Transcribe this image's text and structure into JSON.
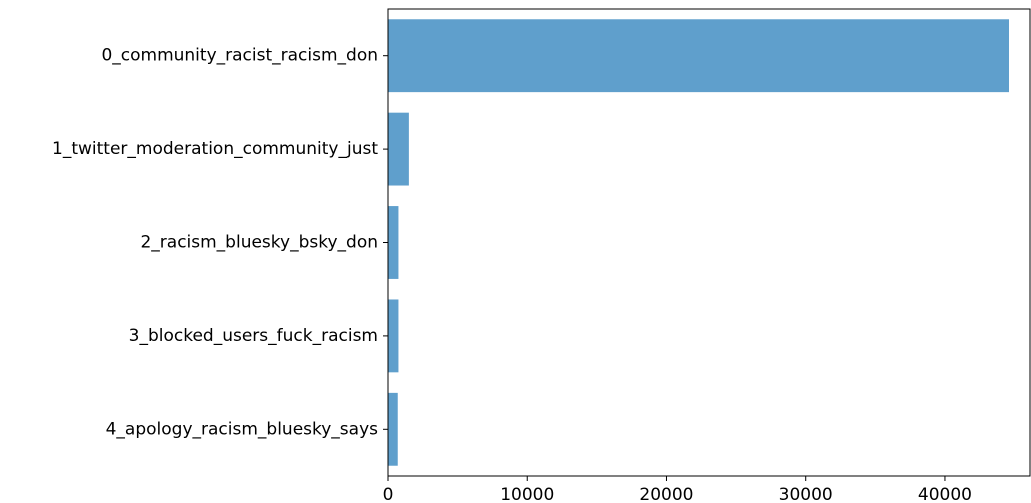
{
  "chart_data": {
    "type": "bar",
    "orientation": "horizontal",
    "categories": [
      "0_community_racist_racism_don",
      "1_twitter_moderation_community_just",
      "2_racism_bluesky_bsky_don",
      "3_blocked_users_fuck_racism",
      "4_apology_racism_bluesky_says"
    ],
    "values": [
      44600,
      1500,
      750,
      750,
      700
    ],
    "title": "",
    "xlabel": "",
    "ylabel": "",
    "xlim": [
      0,
      44600
    ],
    "xticks": [
      0,
      10000,
      20000,
      30000,
      40000
    ],
    "xtick_labels": [
      "0",
      "10000",
      "20000",
      "30000",
      "40000"
    ],
    "bar_color": "#5f9fcc",
    "grid": false,
    "legend": "none"
  }
}
